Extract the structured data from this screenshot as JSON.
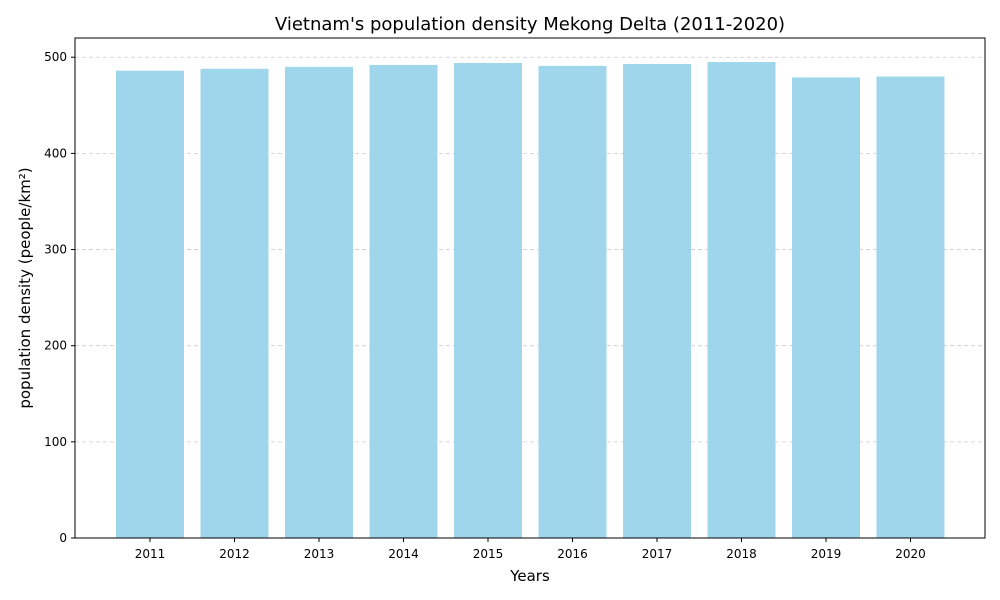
{
  "chart_data": {
    "type": "bar",
    "title": "Vietnam's population density Mekong Delta (2011-2020)",
    "xlabel": "Years",
    "ylabel": "population density (people/km²)",
    "categories": [
      "2011",
      "2012",
      "2013",
      "2014",
      "2015",
      "2016",
      "2017",
      "2018",
      "2019",
      "2020"
    ],
    "values": [
      486,
      488,
      490,
      492,
      494,
      491,
      493,
      495,
      479,
      480
    ],
    "ylim": [
      0,
      520
    ],
    "yticks": [
      0,
      100,
      200,
      300,
      400,
      500
    ],
    "grid": "y-dashed",
    "bar_color": "#a0d6ec"
  }
}
